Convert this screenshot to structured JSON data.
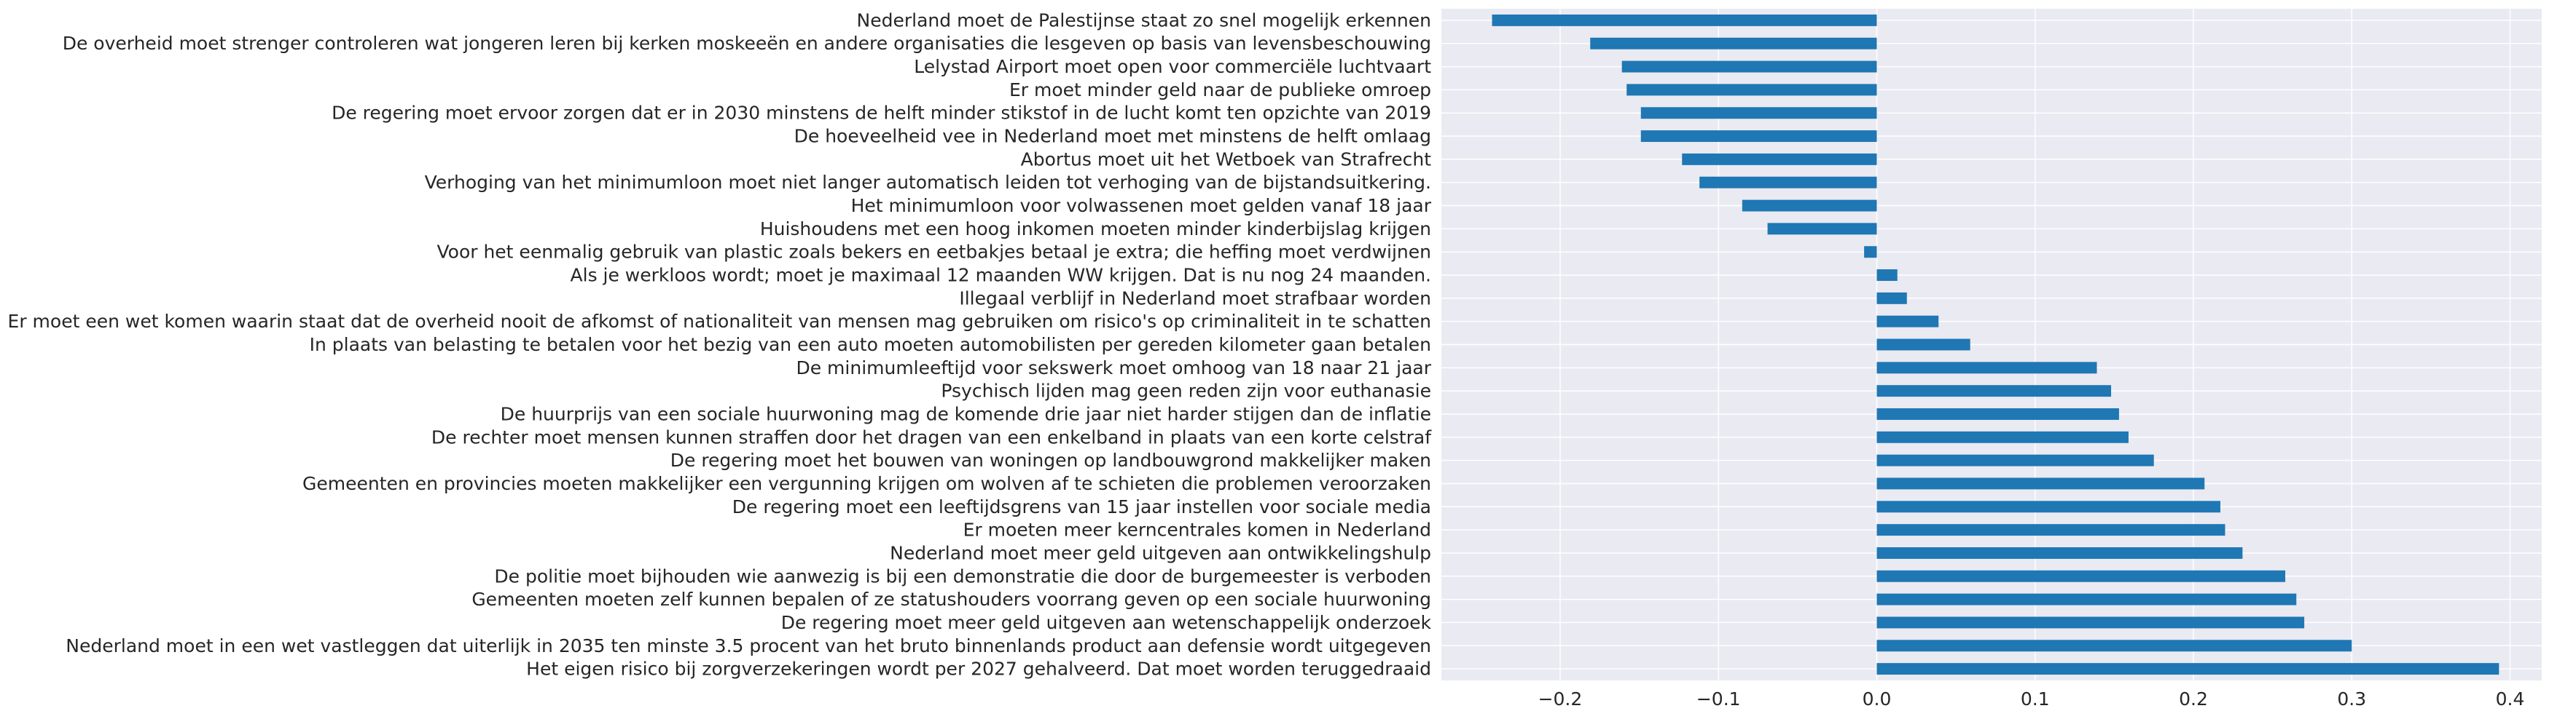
{
  "chart_data": {
    "type": "bar",
    "orientation": "horizontal",
    "categories": [
      "Nederland moet de Palestijnse staat zo snel mogelijk erkennen",
      "De overheid moet strenger controleren wat jongeren leren bij kerken moskeeën en andere organisaties die lesgeven op basis van levensbeschouwing",
      "Lelystad Airport moet open voor commerciële luchtvaart",
      "Er moet minder geld naar de publieke omroep",
      "De regering moet ervoor zorgen dat er in 2030 minstens de helft minder stikstof in de lucht komt ten opzichte van 2019",
      "De hoeveelheid vee in Nederland moet met minstens de helft omlaag",
      "Abortus moet uit het Wetboek van Strafrecht",
      "Verhoging van het minimumloon moet niet langer automatisch leiden tot verhoging van de bijstandsuitkering.",
      "Het minimumloon voor volwassenen moet gelden vanaf 18 jaar",
      "Huishoudens met een hoog inkomen moeten minder kinderbijslag krijgen",
      "Voor het eenmalig gebruik van plastic zoals bekers en eetbakjes betaal je extra; die heffing moet verdwijnen",
      "Als je werkloos wordt; moet je maximaal 12 maanden WW krijgen. Dat is nu nog 24 maanden.",
      "Illegaal verblijf in Nederland moet strafbaar worden",
      "Er moet een wet komen waarin staat dat de overheid nooit de afkomst of nationaliteit van mensen mag gebruiken om risico's op criminaliteit in te schatten",
      "In plaats van belasting te betalen voor het bezig van een auto moeten automobilisten per gereden kilometer gaan betalen",
      "De minimumleeftijd voor sekswerk moet omhoog van 18 naar 21 jaar",
      "Psychisch lijden mag geen reden zijn voor euthanasie",
      "De huurprijs van een sociale huurwoning mag de komende drie jaar niet harder stijgen dan de inflatie",
      "De rechter moet mensen kunnen straffen door het dragen van een enkelband in plaats van een korte celstraf",
      "De regering moet het bouwen van woningen op landbouwgrond makkelijker maken",
      "Gemeenten en provincies moeten makkelijker een vergunning krijgen om wolven af te schieten die problemen veroorzaken",
      "De regering moet een leeftijdsgrens van 15 jaar instellen voor sociale media",
      "Er moeten meer kerncentrales komen in Nederland",
      "Nederland moet meer geld uitgeven aan ontwikkelingshulp",
      "De politie moet bijhouden wie aanwezig is bij een demonstratie die door de burgemeester is verboden",
      "Gemeenten moeten zelf kunnen bepalen of ze statushouders voorrang geven op een sociale huurwoning",
      "De regering moet meer geld uitgeven aan wetenschappelijk onderzoek",
      "Nederland moet in een wet vastleggen dat uiterlijk in 2035 ten minste 3.5 procent van het bruto binnenlands product aan defensie wordt uitgegeven",
      "Het eigen risico bij zorgverzekeringen wordt per 2027 gehalveerd. Dat moet worden teruggedraaid"
    ],
    "values": [
      -0.243,
      -0.181,
      -0.161,
      -0.158,
      -0.149,
      -0.149,
      -0.123,
      -0.112,
      -0.085,
      -0.069,
      -0.008,
      0.013,
      0.019,
      0.039,
      0.059,
      0.139,
      0.148,
      0.153,
      0.159,
      0.175,
      0.207,
      0.217,
      0.22,
      0.231,
      0.258,
      0.265,
      0.27,
      0.3,
      0.393
    ],
    "xlim": [
      -0.275,
      0.42
    ],
    "xticks": [
      -0.2,
      -0.1,
      0.0,
      0.1,
      0.2,
      0.3,
      0.4
    ],
    "xtick_labels": [
      "−0.2",
      "−0.1",
      "0.0",
      "0.1",
      "0.2",
      "0.3",
      "0.4"
    ],
    "title": "",
    "xlabel": "",
    "ylabel": "",
    "grid": true,
    "bar_color": "#1f77b4",
    "background_color": "#eaeaf2",
    "grid_color": "#ffffff"
  }
}
